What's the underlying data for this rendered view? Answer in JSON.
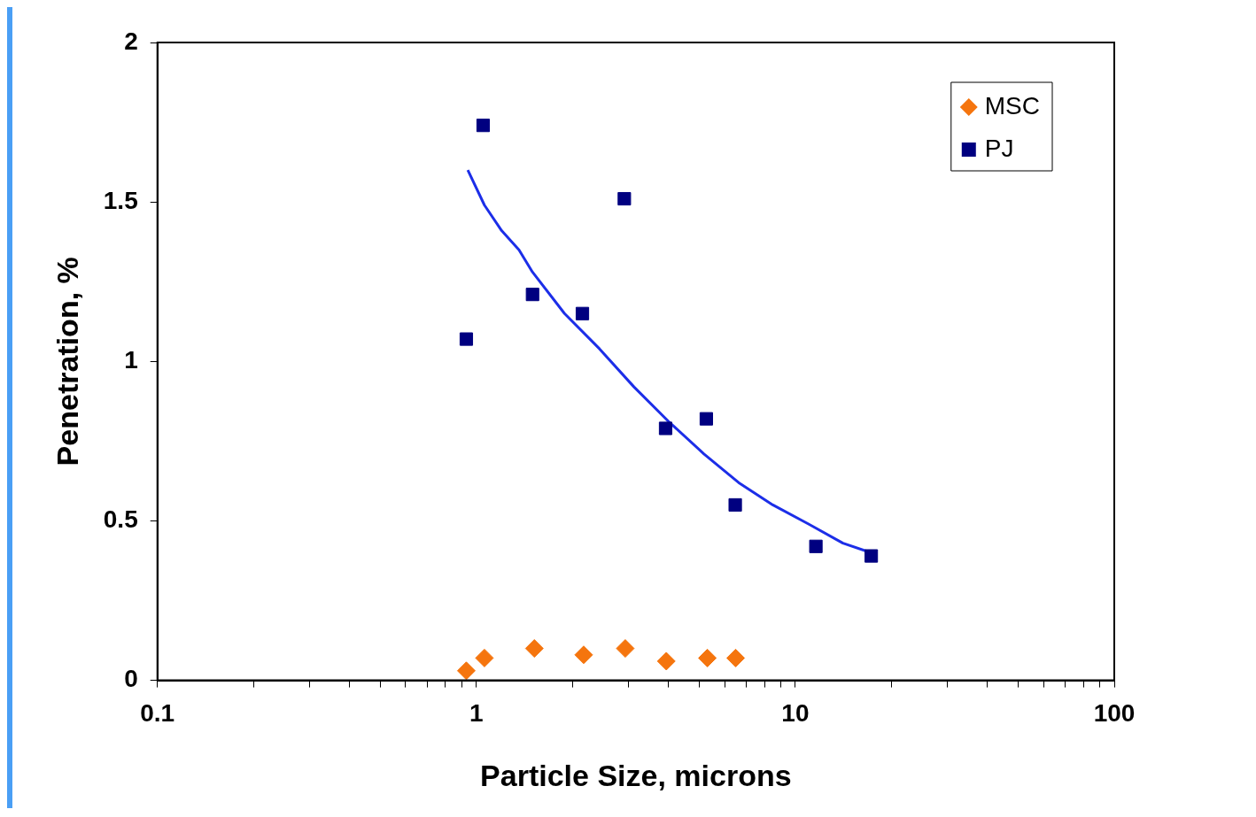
{
  "chart_data": {
    "type": "scatter",
    "xlabel": "Particle Size, microns",
    "ylabel": "Penetration, %",
    "log": "x",
    "xlim": [
      0.1,
      100
    ],
    "ylim": [
      0,
      2
    ],
    "xticks": [
      0.1,
      {
        "value": 0.2,
        "label": null
      },
      {
        "value": 0.3,
        "label": null
      },
      {
        "value": 0.4,
        "label": null
      },
      {
        "value": 0.5,
        "label": null
      },
      {
        "value": 0.6,
        "label": null
      },
      {
        "value": 0.7,
        "label": null
      },
      {
        "value": 0.8,
        "label": null
      },
      {
        "value": 0.9,
        "label": null
      },
      1,
      {
        "value": 2,
        "label": null
      },
      {
        "value": 3,
        "label": null
      },
      {
        "value": 4,
        "label": null
      },
      {
        "value": 5,
        "label": null
      },
      {
        "value": 6,
        "label": null
      },
      {
        "value": 7,
        "label": null
      },
      {
        "value": 8,
        "label": null
      },
      {
        "value": 9,
        "label": null
      },
      10,
      {
        "value": 20,
        "label": null
      },
      {
        "value": 30,
        "label": null
      },
      {
        "value": 40,
        "label": null
      },
      {
        "value": 50,
        "label": null
      },
      {
        "value": 60,
        "label": null
      },
      {
        "value": 70,
        "label": null
      },
      {
        "value": 80,
        "label": null
      },
      {
        "value": 90,
        "label": null
      },
      100
    ],
    "yticks": [
      0,
      0.5,
      1,
      1.5,
      2
    ],
    "grid": false,
    "legend": "top right",
    "series": [
      {
        "name": "MSC",
        "color": "#f5750e",
        "marker": "diamond",
        "x": [
          0.93,
          1.06,
          1.52,
          2.17,
          2.93,
          3.94,
          5.3,
          6.5
        ],
        "values": [
          0.03,
          0.07,
          0.1,
          0.08,
          0.1,
          0.06,
          0.07,
          0.07
        ]
      },
      {
        "name": "PJ",
        "color": "#000080",
        "marker": "square",
        "x": [
          0.93,
          1.05,
          1.5,
          2.15,
          2.91,
          3.92,
          5.26,
          6.48,
          11.6,
          17.3
        ],
        "values": [
          1.07,
          1.74,
          1.21,
          1.15,
          1.51,
          0.79,
          0.82,
          0.55,
          0.42,
          0.39
        ]
      },
      {
        "type": "line",
        "color": "#1c2ee8",
        "marker": "none",
        "line_style": "solid",
        "x": [
          0.94,
          1.06,
          1.2,
          1.36,
          1.5,
          1.89,
          2.43,
          3.12,
          4.02,
          5.17,
          6.64,
          8.5,
          11,
          14.1,
          17.3
        ],
        "values": [
          1.6,
          1.49,
          1.41,
          1.35,
          1.28,
          1.15,
          1.04,
          0.92,
          0.81,
          0.71,
          0.62,
          0.55,
          0.49,
          0.43,
          0.4
        ]
      }
    ]
  }
}
